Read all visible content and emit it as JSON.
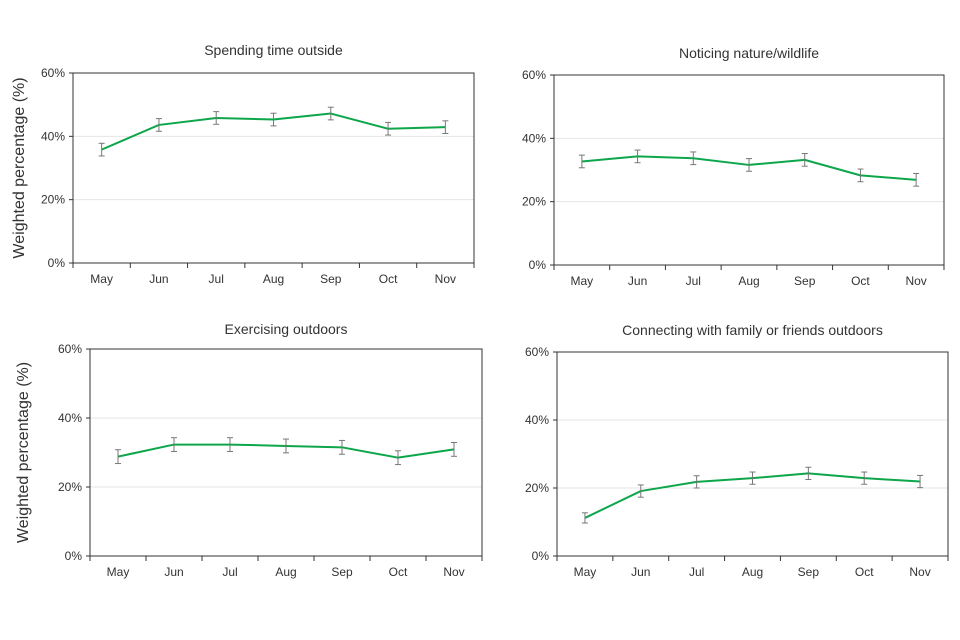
{
  "colors": {
    "line": "#0da64b",
    "error_bar": "#777777",
    "grid": "#e6e6e6",
    "axis": "#333333"
  },
  "chart_data": [
    {
      "type": "line",
      "title": "Spending time outside",
      "ylabel": "Weighted percentage (%)",
      "categories": [
        "May",
        "Jun",
        "Jul",
        "Aug",
        "Sep",
        "Oct",
        "Nov"
      ],
      "values": [
        35.8,
        43.6,
        45.8,
        45.3,
        47.2,
        42.4,
        42.9
      ],
      "error": [
        2.0,
        2.0,
        2.0,
        2.0,
        2.0,
        2.0,
        2.0
      ],
      "ylim": [
        0,
        60
      ],
      "yticks": [
        0,
        20,
        40,
        60
      ],
      "ytick_labels": [
        "0%",
        "20%",
        "40%",
        "60%"
      ]
    },
    {
      "type": "line",
      "title": "Noticing nature/wildlife",
      "ylabel": "",
      "categories": [
        "May",
        "Jun",
        "Jul",
        "Aug",
        "Sep",
        "Oct",
        "Nov"
      ],
      "values": [
        32.7,
        34.3,
        33.7,
        31.6,
        33.2,
        28.3,
        26.9
      ],
      "error": [
        2.0,
        2.0,
        2.0,
        2.0,
        2.0,
        2.0,
        2.0
      ],
      "ylim": [
        0,
        60
      ],
      "yticks": [
        0,
        20,
        40,
        60
      ],
      "ytick_labels": [
        "0%",
        "20%",
        "40%",
        "60%"
      ]
    },
    {
      "type": "line",
      "title": "Exercising outdoors",
      "ylabel": "Weighted percentage (%)",
      "categories": [
        "May",
        "Jun",
        "Jul",
        "Aug",
        "Sep",
        "Oct",
        "Nov"
      ],
      "values": [
        28.8,
        32.3,
        32.3,
        31.9,
        31.5,
        28.5,
        30.9
      ],
      "error": [
        2.0,
        2.0,
        2.0,
        2.0,
        2.0,
        2.0,
        2.0
      ],
      "ylim": [
        0,
        60
      ],
      "yticks": [
        0,
        20,
        40,
        60
      ],
      "ytick_labels": [
        "0%",
        "20%",
        "40%",
        "60%"
      ]
    },
    {
      "type": "line",
      "title": "Connecting with family or friends outdoors",
      "ylabel": "",
      "categories": [
        "May",
        "Jun",
        "Jul",
        "Aug",
        "Sep",
        "Oct",
        "Nov"
      ],
      "values": [
        11.2,
        19.1,
        21.8,
        22.9,
        24.3,
        22.9,
        21.9
      ],
      "error": [
        1.5,
        1.8,
        1.8,
        1.8,
        1.8,
        1.8,
        1.8
      ],
      "ylim": [
        0,
        60
      ],
      "yticks": [
        0,
        20,
        40,
        60
      ],
      "ytick_labels": [
        "0%",
        "20%",
        "40%",
        "60%"
      ]
    }
  ]
}
